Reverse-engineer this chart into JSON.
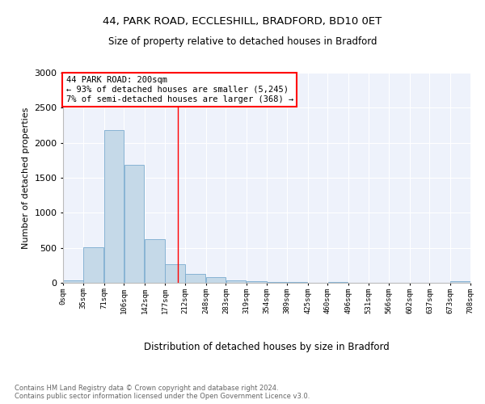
{
  "title_line1": "44, PARK ROAD, ECCLESHILL, BRADFORD, BD10 0ET",
  "title_line2": "Size of property relative to detached houses in Bradford",
  "xlabel": "Distribution of detached houses by size in Bradford",
  "ylabel": "Number of detached properties",
  "bar_color": "#c5d9e8",
  "bar_edge_color": "#7aabcf",
  "background_color": "#eef2fb",
  "annotation_text": "44 PARK ROAD: 200sqm\n← 93% of detached houses are smaller (5,245)\n7% of semi-detached houses are larger (368) →",
  "annotation_box_color": "white",
  "annotation_border_color": "red",
  "redline_x": 200,
  "footer_text": "Contains HM Land Registry data © Crown copyright and database right 2024.\nContains public sector information licensed under the Open Government Licence v3.0.",
  "bin_edges": [
    0,
    35,
    71,
    106,
    142,
    177,
    212,
    248,
    283,
    319,
    354,
    389,
    425,
    460,
    496,
    531,
    566,
    602,
    637,
    673,
    708
  ],
  "bin_labels": [
    "0sqm",
    "35sqm",
    "71sqm",
    "106sqm",
    "142sqm",
    "177sqm",
    "212sqm",
    "248sqm",
    "283sqm",
    "319sqm",
    "354sqm",
    "389sqm",
    "425sqm",
    "460sqm",
    "496sqm",
    "531sqm",
    "566sqm",
    "602sqm",
    "637sqm",
    "673sqm",
    "708sqm"
  ],
  "bar_heights": [
    30,
    510,
    2180,
    1690,
    620,
    270,
    130,
    80,
    35,
    20,
    10,
    8,
    5,
    15,
    0,
    0,
    0,
    0,
    0,
    20
  ],
  "ylim": [
    0,
    3000
  ],
  "yticks": [
    0,
    500,
    1000,
    1500,
    2000,
    2500,
    3000
  ]
}
